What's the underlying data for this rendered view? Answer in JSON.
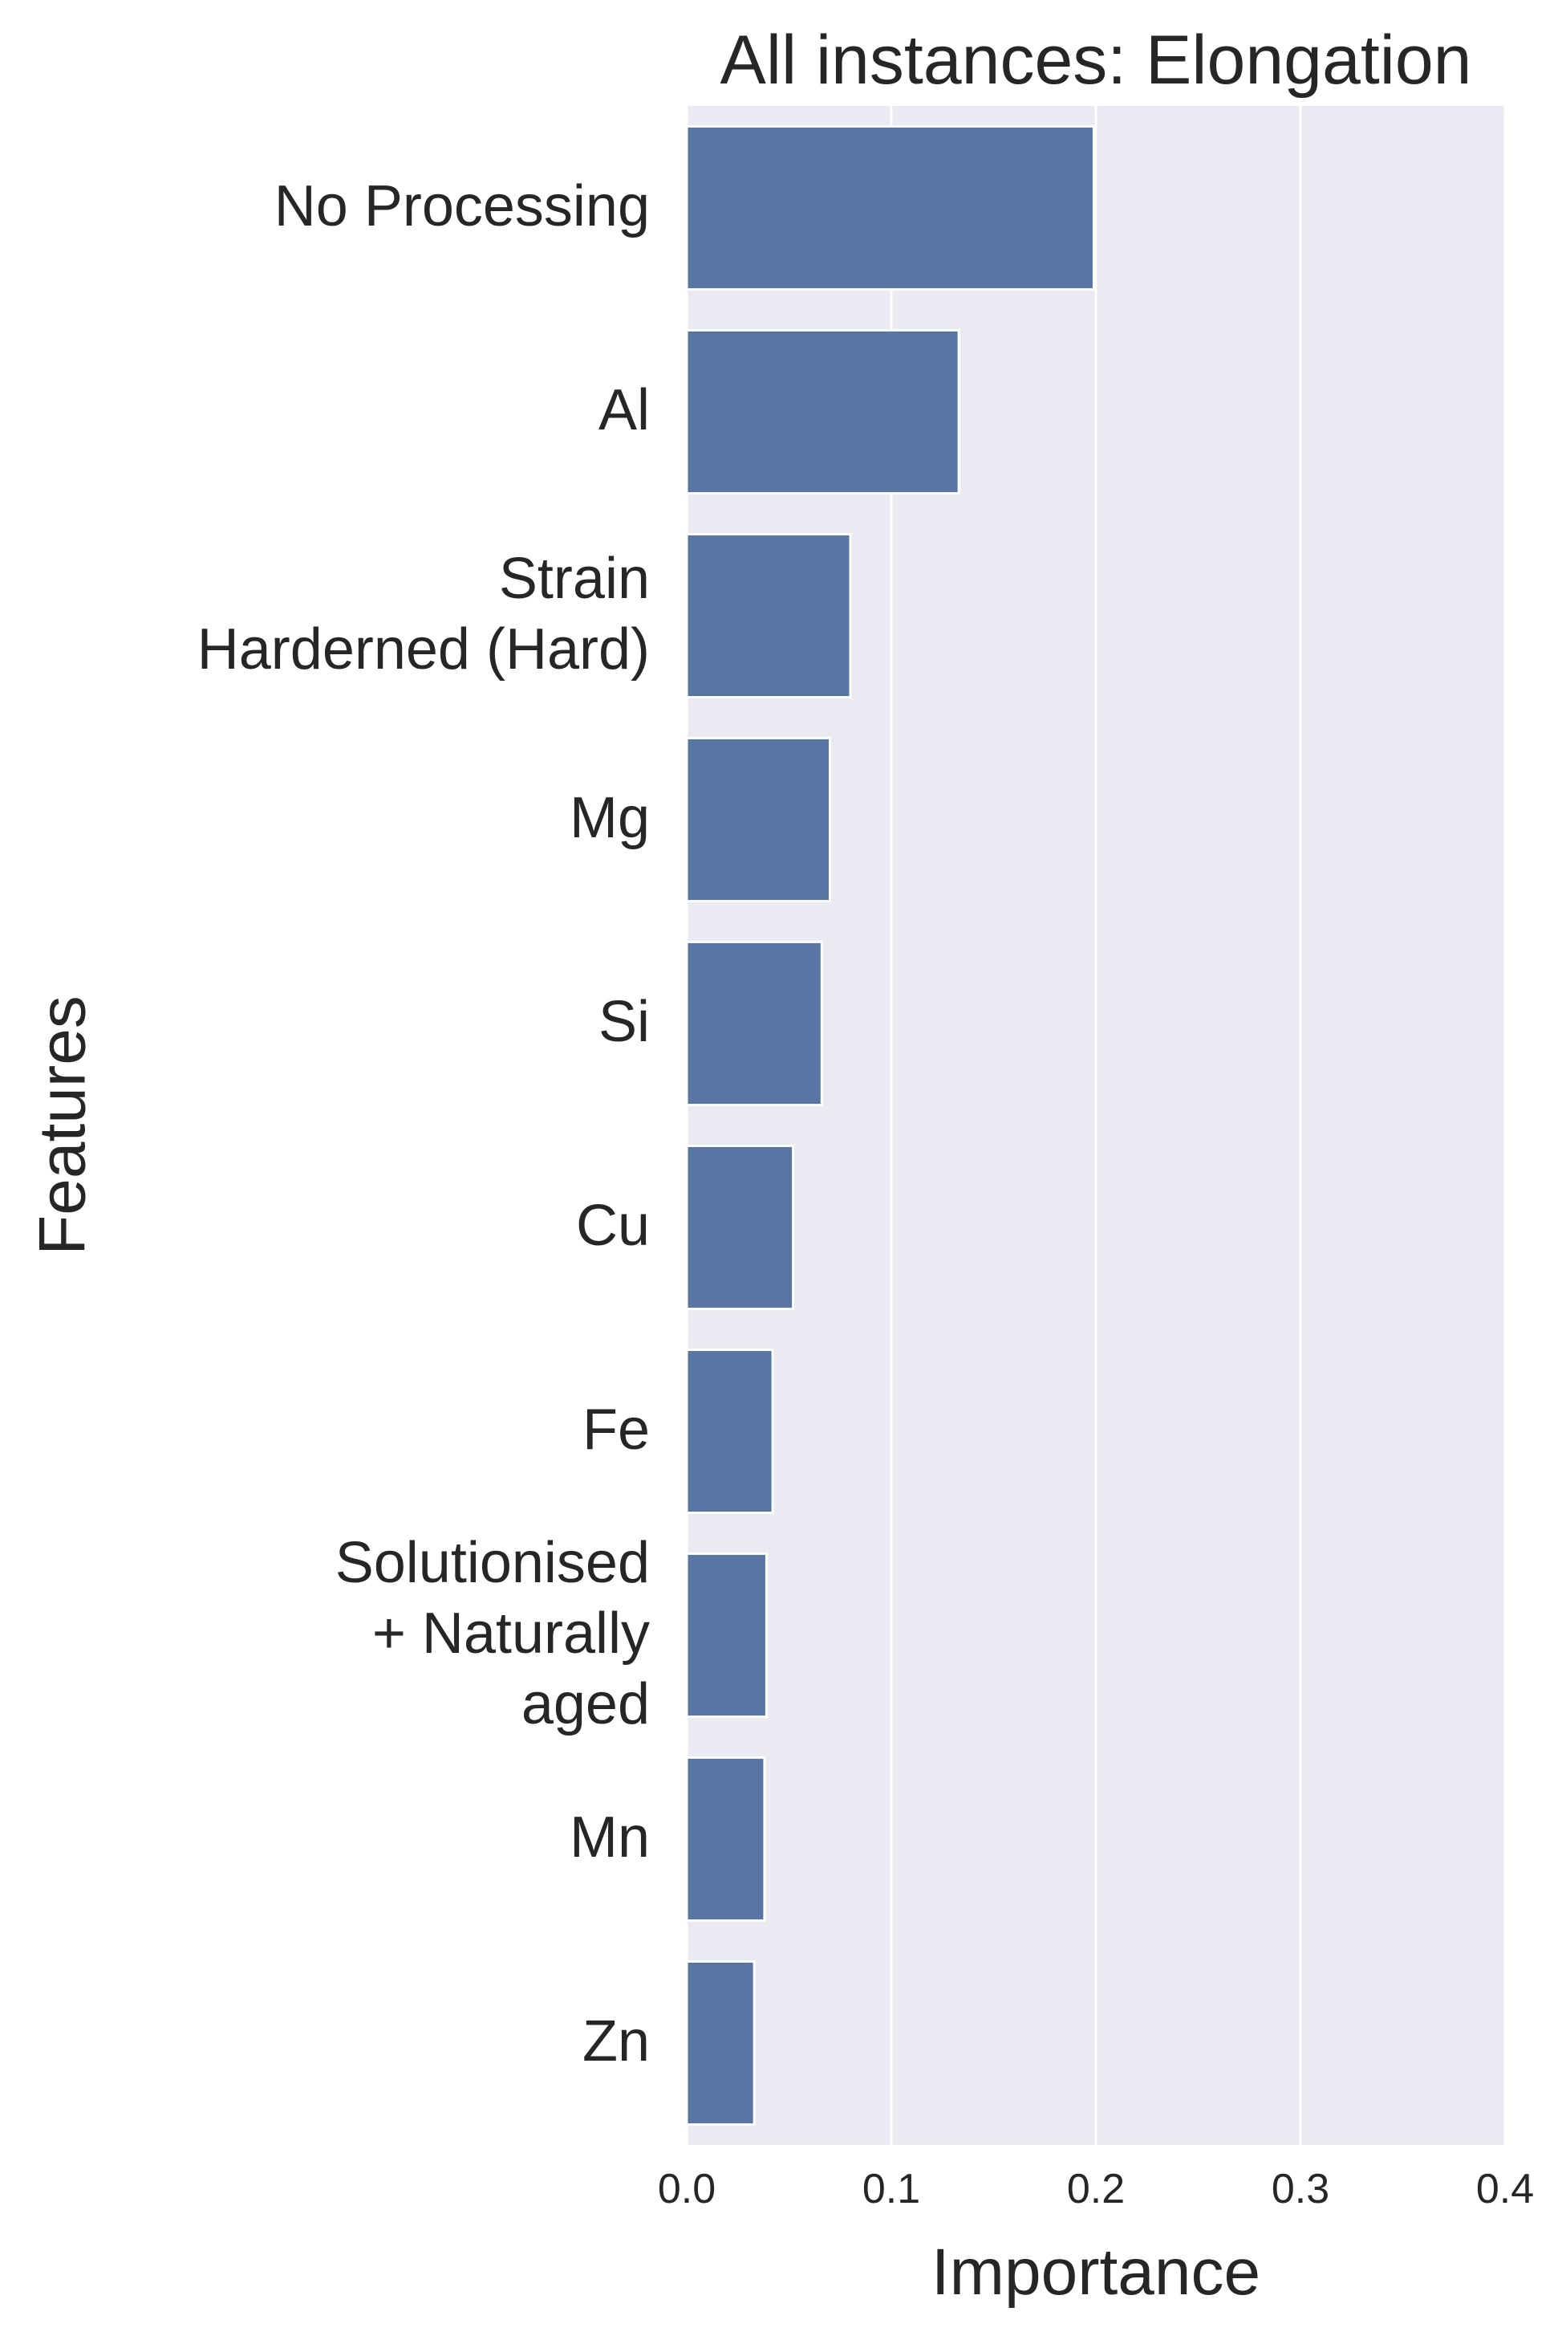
{
  "chart_data": {
    "type": "bar",
    "orientation": "horizontal",
    "title": "All instances: Elongation",
    "xlabel": "Importance",
    "ylabel": "Features",
    "categories": [
      [
        "No Processing"
      ],
      [
        "Al"
      ],
      [
        "Strain ",
        "Harderned (Hard)"
      ],
      [
        "Mg"
      ],
      [
        "Si"
      ],
      [
        "Cu"
      ],
      [
        "Fe"
      ],
      [
        "Solutionised ",
        "+ Naturally ",
        "aged"
      ],
      [
        "Mn"
      ],
      [
        "Zn"
      ]
    ],
    "values": [
      0.199,
      0.133,
      0.08,
      0.07,
      0.066,
      0.052,
      0.042,
      0.039,
      0.038,
      0.033
    ],
    "xlim": [
      0.0,
      0.4
    ],
    "xticks": [
      "0.0",
      "0.1",
      "0.2",
      "0.3",
      "0.4"
    ],
    "grid": true,
    "bar_color": "#5875a4",
    "background_color": "#eaeaf2",
    "grid_color": "#ffffff",
    "text_color": "#262626"
  }
}
